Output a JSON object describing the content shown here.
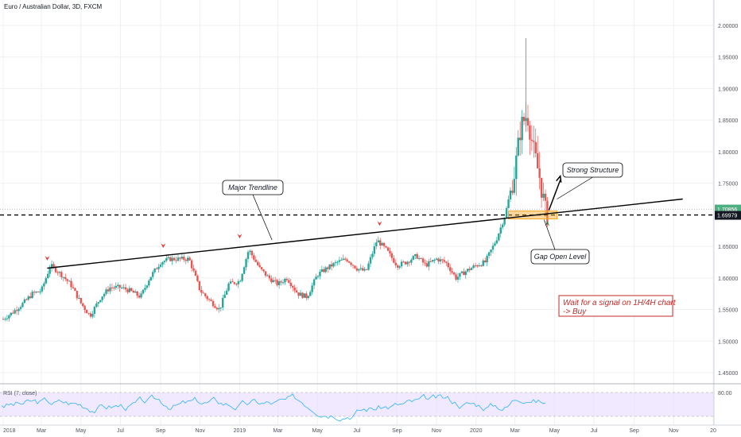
{
  "header": {
    "title": "Euro / Australian Dollar, 3D, FXCM"
  },
  "colors": {
    "up": "#26a69a",
    "down": "#ef5350",
    "trendline": "#000000",
    "rsi": "#29b6f6",
    "rsi_band": "#e9e0ff",
    "zone": "#f5a623",
    "current_price_bg": "#4caf82",
    "note_border": "#c62828"
  },
  "icons": {
    "pivot_marker": "red-down-arrow",
    "buy_marker": "green-up-arrow"
  },
  "chart_data": {
    "type": "candlestick",
    "ylim": [
      1.425,
      2.03
    ],
    "y_ticks": [
      "2.00000",
      "1.95000",
      "1.90000",
      "1.85000",
      "1.80000",
      "1.75000",
      "1.65000",
      "1.60000",
      "1.55000",
      "1.50000",
      "1.45000"
    ],
    "x_ticks": [
      "2018",
      "Mar",
      "May",
      "Jul",
      "Sep",
      "Nov",
      "2019",
      "Mar",
      "May",
      "Jul",
      "Sep",
      "Nov",
      "2020",
      "Mar",
      "May",
      "Jul",
      "Sep",
      "Nov",
      "20"
    ],
    "x_tick_dates": [
      "2018-01-01",
      "2018-03-01",
      "2018-05-01",
      "2018-07-01",
      "2018-09-01",
      "2018-11-01",
      "2019-01-01",
      "2019-03-01",
      "2019-05-01",
      "2019-07-01",
      "2019-09-01",
      "2019-11-01",
      "2020-01-01",
      "2020-03-01",
      "2020-05-01",
      "2020-07-01",
      "2020-09-01",
      "2020-11-01",
      "2021-01-01"
    ],
    "current_price": "1.70856",
    "gap_level": "1.69979",
    "series_closes": [
      [
        "2018-01-01",
        1.535
      ],
      [
        "2018-01-15",
        1.545
      ],
      [
        "2018-02-01",
        1.56
      ],
      [
        "2018-02-15",
        1.575
      ],
      [
        "2018-03-01",
        1.58
      ],
      [
        "2018-03-15",
        1.62
      ],
      [
        "2018-04-01",
        1.605
      ],
      [
        "2018-04-15",
        1.59
      ],
      [
        "2018-05-01",
        1.56
      ],
      [
        "2018-05-15",
        1.54
      ],
      [
        "2018-06-01",
        1.57
      ],
      [
        "2018-06-15",
        1.585
      ],
      [
        "2018-07-01",
        1.585
      ],
      [
        "2018-07-15",
        1.58
      ],
      [
        "2018-08-01",
        1.57
      ],
      [
        "2018-08-15",
        1.6
      ],
      [
        "2018-09-01",
        1.625
      ],
      [
        "2018-09-15",
        1.63
      ],
      [
        "2018-10-01",
        1.63
      ],
      [
        "2018-10-15",
        1.63
      ],
      [
        "2018-11-01",
        1.58
      ],
      [
        "2018-11-15",
        1.565
      ],
      [
        "2018-12-01",
        1.55
      ],
      [
        "2018-12-15",
        1.59
      ],
      [
        "2019-01-01",
        1.595
      ],
      [
        "2019-01-15",
        1.645
      ],
      [
        "2019-02-01",
        1.615
      ],
      [
        "2019-02-15",
        1.6
      ],
      [
        "2019-03-01",
        1.59
      ],
      [
        "2019-03-15",
        1.6
      ],
      [
        "2019-04-01",
        1.575
      ],
      [
        "2019-04-15",
        1.57
      ],
      [
        "2019-05-01",
        1.605
      ],
      [
        "2019-05-15",
        1.615
      ],
      [
        "2019-06-01",
        1.625
      ],
      [
        "2019-06-15",
        1.63
      ],
      [
        "2019-07-01",
        1.615
      ],
      [
        "2019-07-15",
        1.61
      ],
      [
        "2019-08-01",
        1.66
      ],
      [
        "2019-08-15",
        1.645
      ],
      [
        "2019-09-01",
        1.62
      ],
      [
        "2019-09-15",
        1.625
      ],
      [
        "2019-10-01",
        1.635
      ],
      [
        "2019-10-15",
        1.62
      ],
      [
        "2019-11-01",
        1.63
      ],
      [
        "2019-11-15",
        1.625
      ],
      [
        "2019-12-01",
        1.6
      ],
      [
        "2019-12-15",
        1.61
      ],
      [
        "2020-01-01",
        1.62
      ],
      [
        "2020-01-15",
        1.625
      ],
      [
        "2020-02-01",
        1.66
      ],
      [
        "2020-02-15",
        1.7
      ],
      [
        "2020-03-01",
        1.77
      ],
      [
        "2020-03-10",
        1.84
      ],
      [
        "2020-03-20",
        1.86
      ],
      [
        "2020-03-30",
        1.8
      ],
      [
        "2020-04-08",
        1.76
      ],
      [
        "2020-04-18",
        1.7
      ]
    ],
    "rsi": {
      "label": "RSI (7, close)",
      "level": "80.00",
      "upper": 80,
      "lower": 20
    },
    "annotations": {
      "trendline_label": "Major Trendline",
      "structure_label": "Strong Structure",
      "gap_label": "Gap Open Level",
      "note_line1": "Wait for a signal on 1H/4H chart",
      "note_line2": "-> Buy"
    }
  }
}
